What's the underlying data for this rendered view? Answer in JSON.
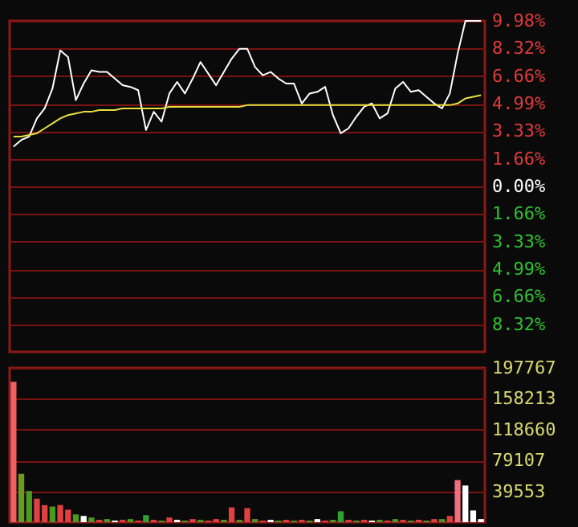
{
  "chart_data": [
    {
      "type": "line",
      "categories": [
        null,
        null,
        null,
        null,
        null,
        null,
        null,
        null,
        null,
        null,
        null,
        null,
        null,
        null,
        null,
        null,
        null,
        null,
        null,
        null,
        null,
        null,
        null,
        null,
        null,
        null,
        null,
        null,
        null,
        null,
        null,
        null,
        null,
        null,
        null,
        null,
        null,
        null,
        null,
        null,
        null,
        null,
        null,
        null,
        null,
        null,
        null,
        null,
        null,
        null,
        null,
        null,
        null,
        null,
        null,
        null,
        null,
        null,
        null,
        null,
        null
      ],
      "series": [
        {
          "color": "#ffffff",
          "values": [
            2.4,
            2.8,
            3.0,
            4.1,
            4.7,
            5.9,
            8.2,
            7.8,
            5.2,
            6.2,
            7.0,
            6.9,
            6.9,
            6.5,
            6.1,
            6.0,
            5.8,
            3.4,
            4.5,
            3.9,
            5.6,
            6.3,
            5.6,
            6.5,
            7.5,
            6.8,
            6.1,
            6.9,
            7.7,
            8.3,
            8.3,
            7.2,
            6.7,
            6.9,
            6.5,
            6.2,
            6.2,
            5.0,
            5.6,
            5.7,
            6.0,
            4.3,
            3.2,
            3.5,
            4.2,
            4.8,
            5.0,
            4.1,
            4.4,
            5.9,
            6.3,
            5.7,
            5.8,
            5.4,
            5.0,
            4.7,
            5.6,
            8.0,
            9.98,
            9.98,
            9.98
          ]
        },
        {
          "color": "#e8e040",
          "values": [
            3.0,
            3.0,
            3.1,
            3.2,
            3.5,
            3.8,
            4.1,
            4.3,
            4.4,
            4.5,
            4.5,
            4.6,
            4.6,
            4.6,
            4.7,
            4.7,
            4.7,
            4.7,
            4.7,
            4.7,
            4.8,
            4.8,
            4.8,
            4.8,
            4.8,
            4.8,
            4.8,
            4.8,
            4.8,
            4.8,
            4.9,
            4.9,
            4.9,
            4.9,
            4.9,
            4.9,
            4.9,
            4.9,
            4.9,
            4.9,
            4.9,
            4.9,
            4.9,
            4.9,
            4.9,
            4.9,
            4.9,
            4.9,
            4.9,
            4.9,
            4.9,
            4.9,
            4.9,
            4.9,
            4.9,
            4.9,
            4.9,
            5.0,
            5.3,
            5.4,
            5.5
          ]
        }
      ],
      "ylim": [
        -9.98,
        9.98
      ],
      "yticks": [
        {
          "value": 9.98,
          "label": "9.98%"
        },
        {
          "value": 8.32,
          "label": "8.32%"
        },
        {
          "value": 6.66,
          "label": "6.66%"
        },
        {
          "value": 4.99,
          "label": "4.99%"
        },
        {
          "value": 3.33,
          "label": "3.33%"
        },
        {
          "value": 1.66,
          "label": "1.66%"
        },
        {
          "value": 0,
          "label": "0.00%"
        },
        {
          "value": -1.66,
          "label": "1.66%"
        },
        {
          "value": -3.33,
          "label": "3.33%"
        },
        {
          "value": -4.99,
          "label": "4.99%"
        },
        {
          "value": -6.66,
          "label": "6.66%"
        },
        {
          "value": -8.32,
          "label": "8.32%"
        }
      ],
      "grid": "y",
      "tick_labels": "y"
    },
    {
      "type": "bar",
      "categories": [
        null,
        null,
        null,
        null,
        null,
        null,
        null,
        null,
        null,
        null,
        null,
        null,
        null,
        null,
        null,
        null,
        null,
        null,
        null,
        null,
        null,
        null,
        null,
        null,
        null,
        null,
        null,
        null,
        null,
        null,
        null,
        null,
        null,
        null,
        null,
        null,
        null,
        null,
        null,
        null,
        null,
        null,
        null,
        null,
        null,
        null,
        null,
        null,
        null,
        null,
        null,
        null,
        null,
        null,
        null,
        null,
        null,
        null,
        null,
        null,
        null
      ],
      "values": [
        180000,
        62000,
        40000,
        30000,
        22000,
        20000,
        22000,
        16000,
        10000,
        8000,
        6000,
        3000,
        4000,
        2000,
        3000,
        4000,
        2000,
        9000,
        3000,
        2000,
        6000,
        3000,
        2000,
        4000,
        3000,
        2000,
        4000,
        3000,
        19000,
        3000,
        18000,
        4000,
        2000,
        3000,
        2000,
        3000,
        2000,
        3000,
        2000,
        4000,
        2000,
        3000,
        14000,
        3000,
        2000,
        3000,
        2000,
        3000,
        2000,
        4000,
        3000,
        2000,
        3000,
        2000,
        4000,
        4000,
        8000,
        54000,
        47000,
        15000,
        4000
      ],
      "colors": [
        "#f06060",
        "#6a9a20",
        "#4a9a20",
        "#e04040",
        "#e04040",
        "#4a9a20",
        "#e04040",
        "#e04040",
        "#4a9a20",
        "#ffffff",
        "#4a9a20",
        "#e04040",
        "#4a9a20",
        "#ffffff",
        "#e04040",
        "#4a9a20",
        "#e04040",
        "#30a030",
        "#e04040",
        "#4a9a20",
        "#e04040",
        "#ffffff",
        "#4a9a20",
        "#e04040",
        "#4a9a20",
        "#e04040",
        "#e04040",
        "#4a9a20",
        "#e04040",
        "#4a9a20",
        "#e04040",
        "#4a9a20",
        "#e04040",
        "#ffffff",
        "#4a9a20",
        "#e04040",
        "#4a9a20",
        "#e04040",
        "#4a9a20",
        "#ffffff",
        "#e04040",
        "#4a9a20",
        "#30a030",
        "#e04040",
        "#4a9a20",
        "#e04040",
        "#ffffff",
        "#4a9a20",
        "#e04040",
        "#4a9a20",
        "#e04040",
        "#4a9a20",
        "#e04040",
        "#4a9a20",
        "#e04040",
        "#4a9a20",
        "#e04040",
        "#f07080",
        "#ffffff",
        "#ffffff",
        "#ffffff"
      ],
      "ylim": [
        0,
        197767
      ],
      "yticks": [
        39553,
        79107,
        118660,
        158213,
        197767
      ],
      "grid": "y",
      "tick_labels": "y"
    }
  ]
}
